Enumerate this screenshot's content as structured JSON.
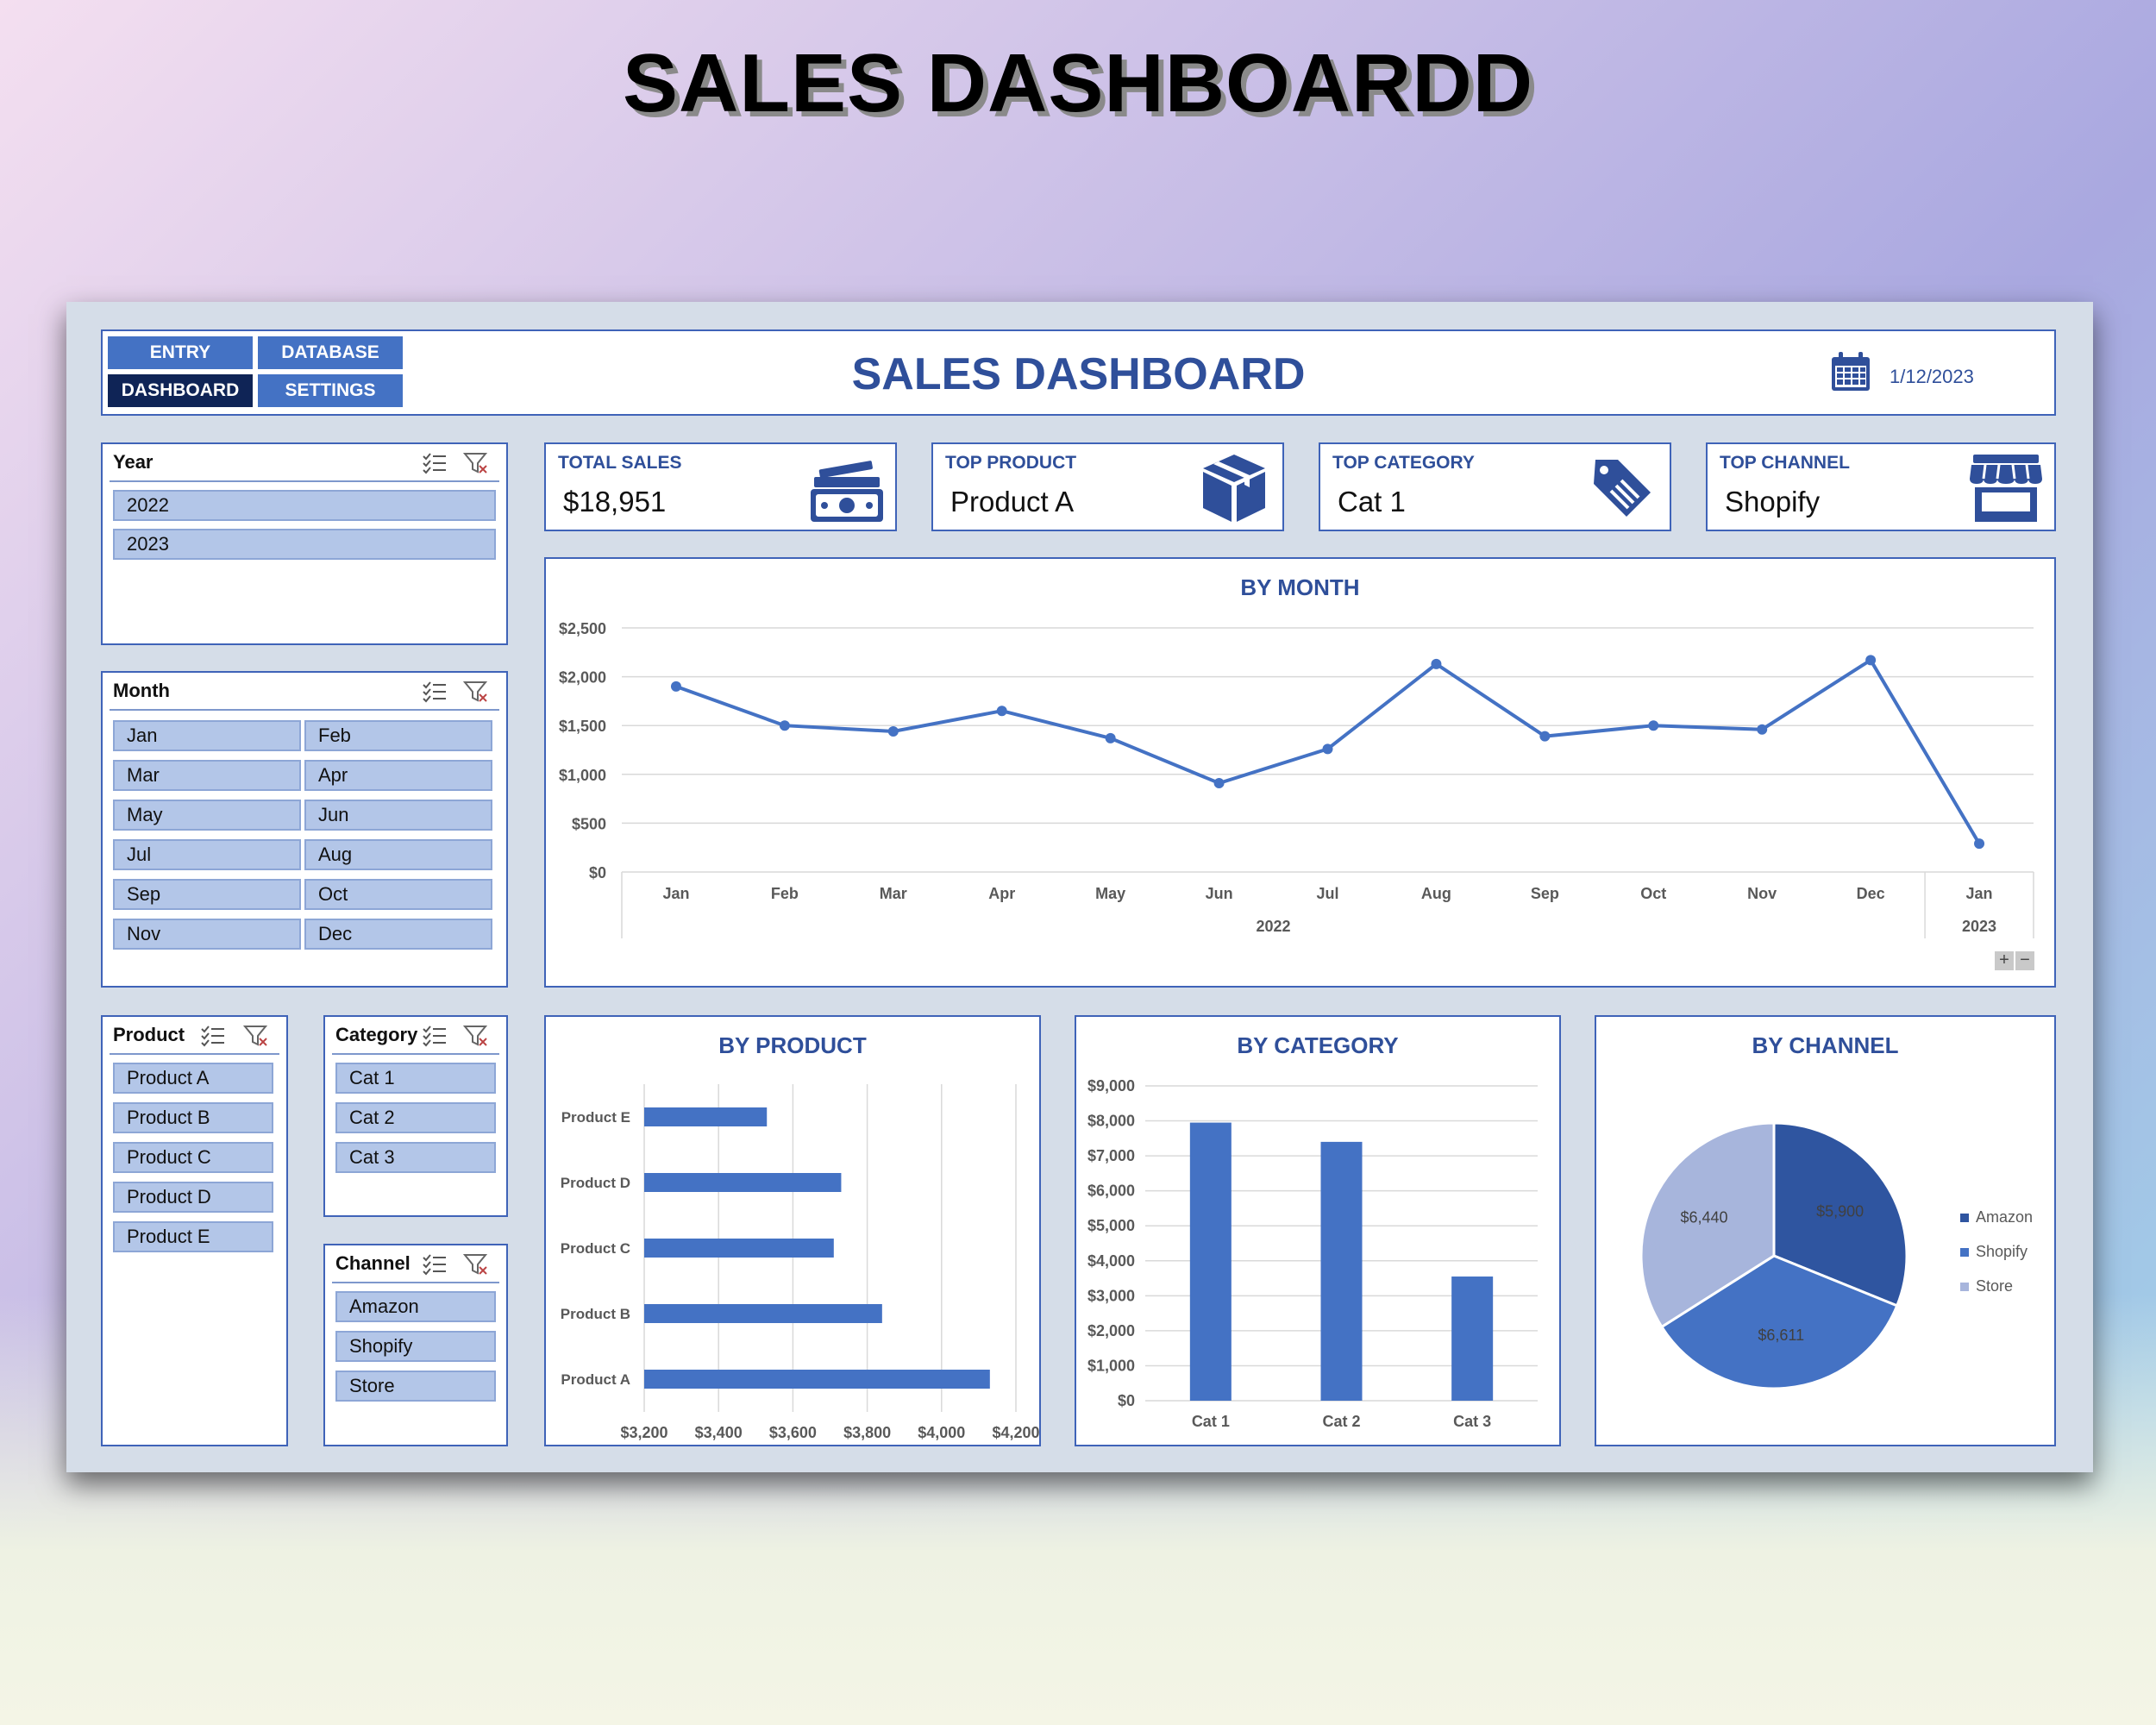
{
  "hero_title": "SALES DASHBOARDD",
  "nav": {
    "entry": "ENTRY",
    "database": "DATABASE",
    "dashboard": "DASHBOARD",
    "settings": "SETTINGS"
  },
  "header": {
    "title": "SALES DASHBOARD",
    "date": "1/12/2023",
    "calendar_icon": "calendar-icon"
  },
  "slicers": {
    "year": {
      "title": "Year",
      "items": [
        "2022",
        "2023"
      ]
    },
    "month": {
      "title": "Month",
      "items": [
        "Jan",
        "Feb",
        "Mar",
        "Apr",
        "May",
        "Jun",
        "Jul",
        "Aug",
        "Sep",
        "Oct",
        "Nov",
        "Dec"
      ]
    },
    "product": {
      "title": "Product",
      "items": [
        "Product A",
        "Product B",
        "Product C",
        "Product D",
        "Product E"
      ]
    },
    "category": {
      "title": "Category",
      "items": [
        "Cat 1",
        "Cat 2",
        "Cat 3"
      ]
    },
    "channel": {
      "title": "Channel",
      "items": [
        "Amazon",
        "Shopify",
        "Store"
      ]
    }
  },
  "kpis": {
    "total_sales": {
      "label": "TOTAL SALES",
      "value": "$18,951",
      "icon": "money-icon"
    },
    "top_product": {
      "label": "TOP PRODUCT",
      "value": "Product A",
      "icon": "box-icon"
    },
    "top_category": {
      "label": "TOP CATEGORY",
      "value": "Cat 1",
      "icon": "tag-icon"
    },
    "top_channel": {
      "label": "TOP CHANNEL",
      "value": "Shopify",
      "icon": "store-icon"
    }
  },
  "colors": {
    "accent": "#4472c4",
    "dark": "#0f2456",
    "title": "#2f4f9a",
    "pie_amazon": "#2f55a0",
    "pie_shopify": "#4472c4",
    "pie_store": "#a7b5dc"
  },
  "chart_data": [
    {
      "type": "line",
      "title": "BY MONTH",
      "categories": [
        "Jan",
        "Feb",
        "Mar",
        "Apr",
        "May",
        "Jun",
        "Jul",
        "Aug",
        "Sep",
        "Oct",
        "Nov",
        "Dec",
        "Jan"
      ],
      "groups": [
        {
          "label": "2022",
          "span": 12
        },
        {
          "label": "2023",
          "span": 1
        }
      ],
      "values": [
        1900,
        1500,
        1440,
        1650,
        1370,
        910,
        1260,
        2130,
        1390,
        1500,
        1460,
        2170,
        290
      ],
      "y_ticks": [
        "$0",
        "$500",
        "$1,000",
        "$1,500",
        "$2,000",
        "$2,500"
      ],
      "ylim": [
        0,
        2500
      ],
      "grid": true
    },
    {
      "type": "bar",
      "orientation": "horizontal",
      "title": "BY PRODUCT",
      "categories": [
        "Product E",
        "Product D",
        "Product C",
        "Product B",
        "Product A"
      ],
      "values": [
        3530,
        3730,
        3710,
        3840,
        4130
      ],
      "x_ticks": [
        "$3,200",
        "$3,400",
        "$3,600",
        "$3,800",
        "$4,000",
        "$4,200"
      ],
      "xlim": [
        3200,
        4200
      ],
      "grid": true
    },
    {
      "type": "bar",
      "title": "BY CATEGORY",
      "categories": [
        "Cat 1",
        "Cat 2",
        "Cat 3"
      ],
      "values": [
        7950,
        7400,
        3550
      ],
      "y_ticks": [
        "$0",
        "$1,000",
        "$2,000",
        "$3,000",
        "$4,000",
        "$5,000",
        "$6,000",
        "$7,000",
        "$8,000",
        "$9,000"
      ],
      "ylim": [
        0,
        9000
      ],
      "grid": true
    },
    {
      "type": "pie",
      "title": "BY CHANNEL",
      "labels": [
        "Amazon",
        "Shopify",
        "Store"
      ],
      "values": [
        5900,
        6611,
        6440
      ],
      "data_labels": [
        "$5,900",
        "$6,611",
        "$6,440"
      ],
      "legend": "right"
    }
  ]
}
